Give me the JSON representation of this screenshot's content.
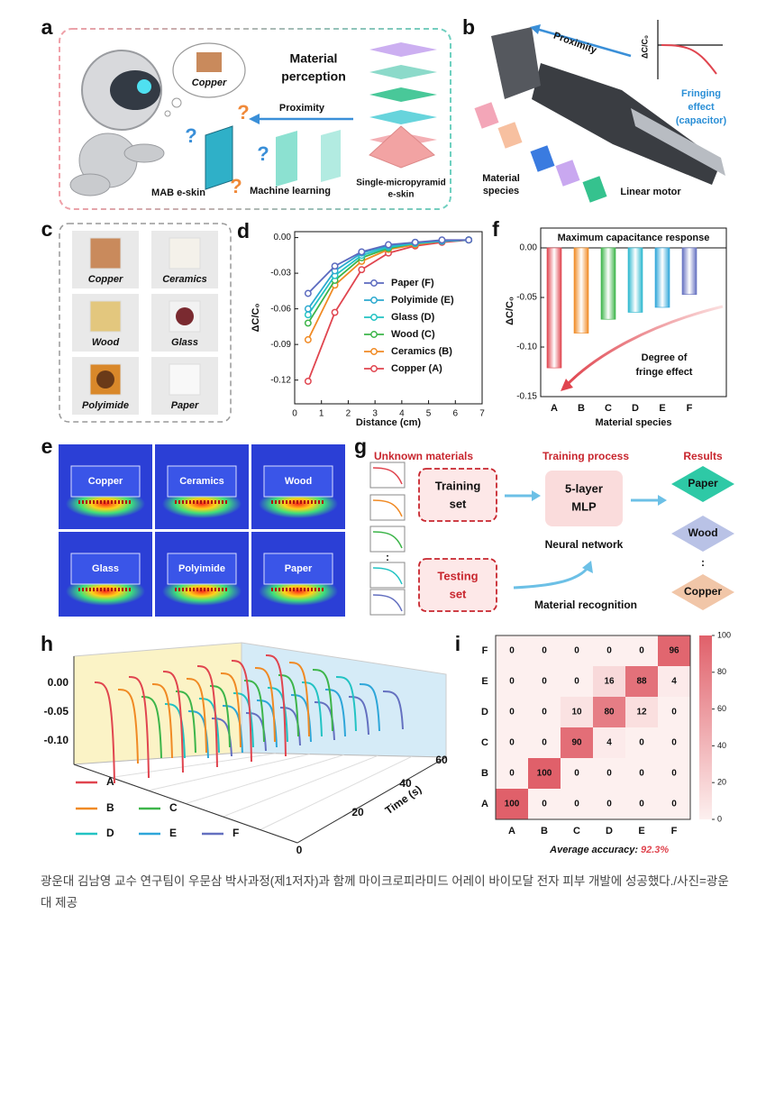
{
  "panels": {
    "a": {
      "label": "a",
      "bubble": "Copper",
      "title": [
        "Material",
        "perception"
      ],
      "arrow": "Proximity",
      "question": "?",
      "left": "MAB e-skin",
      "middle": "Machine learning",
      "right": [
        "Single-micropyramid",
        "e-skin"
      ]
    },
    "b": {
      "label": "b",
      "arrow": "Proximity",
      "inset_axis": "ΔC/C₀",
      "inset_note": [
        "Fringing",
        "effect",
        "(capacitor)"
      ],
      "left": [
        "Material",
        "species"
      ],
      "right": "Linear motor"
    },
    "c": {
      "label": "c",
      "samples": [
        "Copper",
        "Ceramics",
        "Wood",
        "Glass",
        "Polyimide",
        "Paper"
      ]
    },
    "d": {
      "label": "d"
    },
    "e": {
      "label": "e",
      "tiles": [
        "Copper",
        "Ceramics",
        "Wood",
        "Glass",
        "Polyimide",
        "Paper"
      ]
    },
    "f": {
      "label": "f"
    },
    "g": {
      "label": "g",
      "col1": "Unknown materials",
      "col2": "Training process",
      "col3": "Results",
      "training": [
        "Training",
        "set"
      ],
      "testing": [
        "Testing",
        "set"
      ],
      "mlp": [
        "5-layer",
        "MLP"
      ],
      "network": "Neural network",
      "recognition": "Material recognition",
      "results": [
        "Paper",
        "Wood",
        "Copper"
      ],
      "ellipsis": ":"
    },
    "h": {
      "label": "h",
      "yticks": [
        "0.00",
        "-0.05",
        "-0.10"
      ],
      "tticks": [
        "0",
        "20",
        "40",
        "60"
      ],
      "taxis": "Time (s)",
      "legend": [
        "A",
        "B",
        "C",
        "D",
        "E",
        "F"
      ],
      "colors": [
        "#e0454f",
        "#f08a24",
        "#3db54a",
        "#22c3c3",
        "#2ea6d9",
        "#6470c0"
      ]
    },
    "i": {
      "label": "i"
    }
  },
  "chart_data": [
    {
      "type": "line",
      "xlabel": "Distance (cm)",
      "ylabel": "ΔC/C₀",
      "x": [
        0.5,
        1.5,
        2.5,
        3.5,
        4.5,
        5.5,
        6.5
      ],
      "series": [
        {
          "name": "Paper (F)",
          "color": "#5b6abf",
          "values": [
            -0.047,
            -0.024,
            -0.012,
            -0.006,
            -0.004,
            -0.002,
            -0.002
          ]
        },
        {
          "name": "Polyimide (E)",
          "color": "#2ba9cf",
          "values": [
            -0.06,
            -0.028,
            -0.013,
            -0.007,
            -0.004,
            -0.003,
            -0.002
          ]
        },
        {
          "name": "Glass (D)",
          "color": "#22c3c3",
          "values": [
            -0.065,
            -0.032,
            -0.015,
            -0.008,
            -0.005,
            -0.003,
            -0.002
          ]
        },
        {
          "name": "Wood (C)",
          "color": "#3db54a",
          "values": [
            -0.072,
            -0.036,
            -0.017,
            -0.009,
            -0.005,
            -0.003,
            -0.002
          ]
        },
        {
          "name": "Ceramics (B)",
          "color": "#f08a24",
          "values": [
            -0.086,
            -0.04,
            -0.02,
            -0.01,
            -0.006,
            -0.003,
            -0.002
          ]
        },
        {
          "name": "Copper (A)",
          "color": "#e0454f",
          "values": [
            -0.121,
            -0.063,
            -0.027,
            -0.013,
            -0.007,
            -0.004,
            -0.002
          ]
        }
      ],
      "xlim": [
        0,
        7
      ],
      "xticks": [
        0,
        1,
        2,
        3,
        4,
        5,
        6,
        7
      ],
      "ylim": [
        -0.14,
        0.005
      ],
      "yticks": [
        {
          "value": 0,
          "label": "0.00"
        },
        -0.03,
        -0.06,
        -0.09,
        -0.12
      ]
    },
    {
      "type": "bar",
      "title": "Maximum capacitance response",
      "xlabel": "Material species",
      "ylabel": "ΔC/C₀",
      "categories": [
        "A",
        "B",
        "C",
        "D",
        "E",
        "F"
      ],
      "values": [
        -0.121,
        -0.086,
        -0.072,
        -0.065,
        -0.06,
        -0.047
      ],
      "colors": [
        "#e0454f",
        "#f08a24",
        "#3db54a",
        "#2cb8cf",
        "#2ea6d9",
        "#6470c0"
      ],
      "ylim": [
        -0.15,
        0.02
      ],
      "yticks": [
        {
          "value": 0,
          "label": "0.00"
        },
        -0.05,
        {
          "value": -0.1,
          "label": "-0.10"
        },
        -0.15
      ],
      "annotation": [
        "Degree of",
        "fringe effect"
      ]
    },
    {
      "type": "heatmap",
      "x_categories": [
        "A",
        "B",
        "C",
        "D",
        "E",
        "F"
      ],
      "y_categories": [
        "A",
        "B",
        "C",
        "D",
        "E",
        "F"
      ],
      "values": [
        [
          100,
          0,
          0,
          0,
          0,
          0
        ],
        [
          0,
          100,
          0,
          0,
          0,
          0
        ],
        [
          0,
          0,
          90,
          4,
          0,
          0
        ],
        [
          0,
          0,
          10,
          80,
          12,
          0
        ],
        [
          0,
          0,
          0,
          16,
          88,
          4
        ],
        [
          0,
          0,
          0,
          0,
          0,
          96
        ]
      ],
      "clim": [
        0,
        100
      ],
      "cticks": [
        0,
        20,
        40,
        60,
        80,
        100
      ],
      "color": "#e0606a",
      "accuracy_label": "Average accuracy:",
      "accuracy": "92.3%"
    }
  ],
  "caption": "광운대 김남영 교수 연구팀이 우문삼 박사과정(제1저자)과 함께 마이크로피라미드 어레이 바이모달 전자 피부 개발에 성공했다./사진=광운대 제공"
}
